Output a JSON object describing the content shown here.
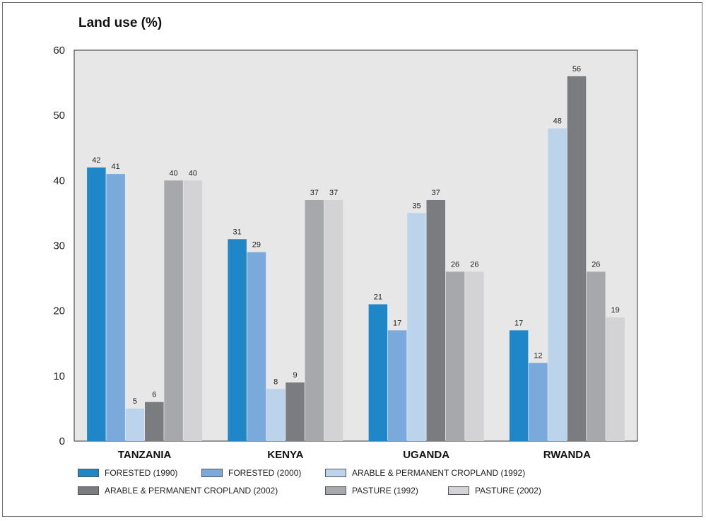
{
  "title": "Land use (%)",
  "chart_data": {
    "type": "bar",
    "title": "Land use (%)",
    "xlabel": "",
    "ylabel": "",
    "ylim": [
      0,
      60
    ],
    "yticks": [
      0,
      10,
      20,
      30,
      40,
      50,
      60
    ],
    "grid": false,
    "legend_position": "bottom",
    "categories": [
      "TANZANIA",
      "KENYA",
      "UGANDA",
      "RWANDA"
    ],
    "series": [
      {
        "name": "FORESTED (1990)",
        "color": "#1f86c8",
        "values": [
          42,
          31,
          21,
          17
        ]
      },
      {
        "name": "FORESTED (2000)",
        "color": "#79aadb",
        "values": [
          41,
          29,
          17,
          12
        ]
      },
      {
        "name": "ARABLE & PERMANENT CROPLAND (1992)",
        "color": "#bcd3ec",
        "values": [
          5,
          8,
          35,
          48
        ]
      },
      {
        "name": "ARABLE & PERMANENT CROPLAND (2002)",
        "color": "#7b7c7f",
        "values": [
          6,
          9,
          37,
          56
        ]
      },
      {
        "name": "PASTURE (1992)",
        "color": "#a7a8ab",
        "values": [
          40,
          37,
          26,
          26
        ]
      },
      {
        "name": "PASTURE (2002)",
        "color": "#d3d3d5",
        "values": [
          40,
          37,
          26,
          19
        ]
      }
    ]
  }
}
